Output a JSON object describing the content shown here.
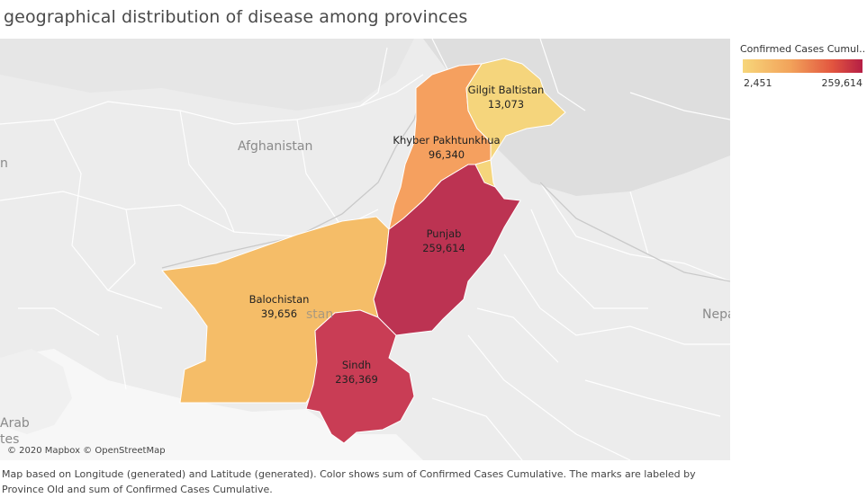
{
  "title": "geographical distribution of disease among provinces",
  "legend": {
    "title": "Confirmed Cases Cumul..",
    "min": "2,451",
    "max": "259,614",
    "color_min": "#f7d67a",
    "color_max": "#b51e45"
  },
  "map": {
    "attribution": "© 2020 Mapbox © OpenStreetMap",
    "country_labels": {
      "afghanistan": "Afghanistan",
      "iran_partial": "n",
      "pakistan_partial": "stan",
      "nepal_partial": "Nepa",
      "arab_partial": "Arab",
      "emirates_partial": "tes"
    },
    "provinces": [
      {
        "key": "gilgit",
        "name": "Gilgit Baltistan",
        "value": "13,073",
        "color": "#f5d57c"
      },
      {
        "key": "kp",
        "name": "Khyber Pakhtunkhua",
        "value": "96,340",
        "color": "#f5a05f"
      },
      {
        "key": "punjab",
        "name": "Punjab",
        "value": "259,614",
        "color": "#bc3352"
      },
      {
        "key": "balochistan",
        "name": "Balochistan",
        "value": "39,656",
        "color": "#f5bd68"
      },
      {
        "key": "sindh",
        "name": "Sindh",
        "value": "236,369",
        "color": "#c93d55"
      }
    ]
  },
  "caption": {
    "line1": "Map based on Longitude (generated) and Latitude (generated).  Color shows sum of Confirmed Cases Cumulative.  The marks are labeled by",
    "line2": "Province Old and sum of Confirmed Cases Cumulative."
  }
}
